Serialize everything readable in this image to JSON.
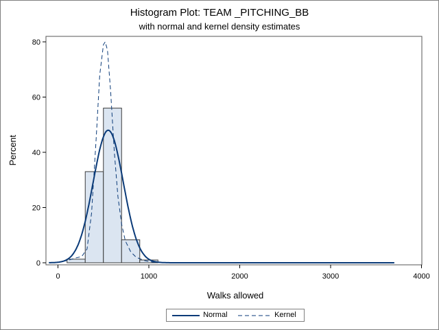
{
  "chart_data": {
    "type": "bar",
    "title": "Histogram Plot: TEAM _PITCHING_BB",
    "subtitle": "with normal and kernel density estimates",
    "xlabel": "Walks allowed",
    "ylabel": "Percent",
    "xlim": [
      -100,
      4000
    ],
    "ylim": [
      0,
      80
    ],
    "xticks": [
      0,
      1000,
      2000,
      3000,
      4000
    ],
    "yticks": [
      0,
      20,
      40,
      60,
      80
    ],
    "bins": [
      {
        "x0": 100,
        "x1": 300,
        "value": 1.3
      },
      {
        "x0": 300,
        "x1": 500,
        "value": 33
      },
      {
        "x0": 500,
        "x1": 700,
        "value": 56
      },
      {
        "x0": 700,
        "x1": 900,
        "value": 8.3
      },
      {
        "x0": 900,
        "x1": 1100,
        "value": 1.0
      }
    ],
    "series": [
      {
        "name": "Normal",
        "kind": "normal",
        "color": "#0a3a78",
        "dash": "solid",
        "mean": 553,
        "peak": 48,
        "sd": 166
      },
      {
        "name": "Kernel",
        "kind": "kernel",
        "color": "#0a3a78",
        "dash": "dashed",
        "points": [
          [
            -100,
            0
          ],
          [
            0,
            0.2
          ],
          [
            100,
            0.8
          ],
          [
            200,
            1.8
          ],
          [
            260,
            2.2
          ],
          [
            320,
            5
          ],
          [
            370,
            18
          ],
          [
            420,
            45
          ],
          [
            460,
            68
          ],
          [
            500,
            79
          ],
          [
            520,
            80
          ],
          [
            545,
            77
          ],
          [
            580,
            62
          ],
          [
            620,
            40
          ],
          [
            660,
            24
          ],
          [
            700,
            14
          ],
          [
            740,
            8
          ],
          [
            800,
            4
          ],
          [
            860,
            2
          ],
          [
            950,
            0.8
          ],
          [
            1050,
            0.2
          ],
          [
            1200,
            0
          ],
          [
            3700,
            0
          ]
        ]
      }
    ],
    "legend_position": "bottom",
    "bar_fill": "#dbe5f1",
    "bar_stroke": "#3a3a3a"
  }
}
